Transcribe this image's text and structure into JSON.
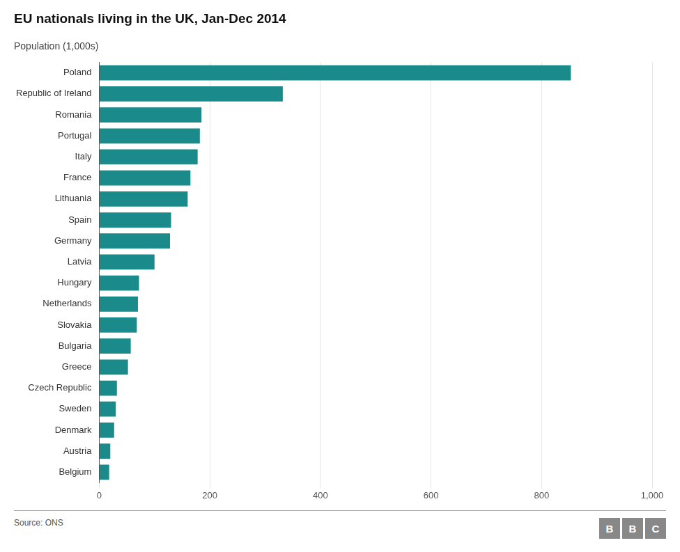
{
  "chart_data": {
    "type": "bar",
    "orientation": "horizontal",
    "title": "EU nationals living in the UK, Jan-Dec 2014",
    "subtitle": "Population (1,000s)",
    "annotations": [
      "Source: ONS",
      "BBC"
    ],
    "categories": [
      "Poland",
      "Republic of Ireland",
      "Romania",
      "Portugal",
      "Italy",
      "France",
      "Lithuania",
      "Spain",
      "Germany",
      "Latvia",
      "Hungary",
      "Netherlands",
      "Slovakia",
      "Bulgaria",
      "Greece",
      "Czech Republic",
      "Sweden",
      "Denmark",
      "Austria",
      "Belgium"
    ],
    "values": [
      853,
      332,
      185,
      182,
      178,
      165,
      160,
      130,
      128,
      100,
      72,
      70,
      68,
      57,
      52,
      32,
      30,
      27,
      20,
      18
    ],
    "color": "#1a8a8a",
    "xlim": [
      0,
      1000
    ],
    "xticks": [
      0,
      200,
      400,
      600,
      800,
      {
        "value": 1000,
        "label": "1,000"
      }
    ],
    "grid": true
  }
}
